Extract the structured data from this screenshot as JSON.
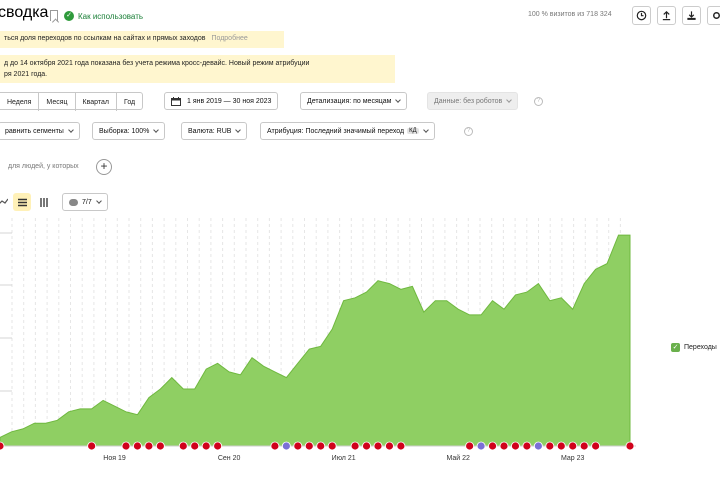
{
  "header": {
    "title": "сводка",
    "how_to_use": "Как использовать",
    "visits_info": "100 % визитов из 718 324"
  },
  "toolbar_icons": [
    "clock-icon",
    "upload-icon",
    "share-download-icon",
    "settings-icon"
  ],
  "notices": {
    "note1_text": "ться доля переходов по ссылкам на сайтах и прямых заходов",
    "note1_link": "Подробнее",
    "note2_line1": "д до 14 октября 2021 года показана без учета режима кросс-девайс. Новый режим атрибуции",
    "note2_line2": "ря 2021 года."
  },
  "period": {
    "buttons": [
      "Неделя",
      "Месяц",
      "Квартал",
      "Год"
    ],
    "range": "1 янв 2019 — 30 ноя 2023",
    "detail": "Детализация: по месяцам",
    "data_filter": "Данные: без роботов"
  },
  "filters": {
    "compare": "равнить сегменты",
    "sample": "Выборка: 100%",
    "currency": "Валюта: RUB",
    "attribution": "Атрибуция: Последний значимый переход",
    "attribution_badge": "КД"
  },
  "segment": {
    "people_text": "для людей, у которых"
  },
  "view": {
    "series_count": "7/7"
  },
  "legend": {
    "label": "Переходы"
  },
  "colors": {
    "area": "#8fcf63",
    "area_line": "#6fb83f",
    "marker_red": "#d0021b",
    "marker_purple": "#7b6fd6"
  },
  "chart_data": {
    "type": "area",
    "series": [
      {
        "name": "Переходы",
        "values": [
          3,
          5,
          6,
          8,
          8,
          9,
          12,
          13,
          13,
          16,
          14,
          12,
          11,
          17,
          20,
          24,
          20,
          20,
          27,
          29,
          26,
          25,
          31,
          28,
          26,
          24,
          29,
          34,
          35,
          41,
          51,
          52,
          54,
          58,
          57,
          55,
          56,
          47,
          51,
          51,
          48,
          46,
          46,
          51,
          48,
          53,
          54,
          57,
          51,
          52,
          48,
          57,
          62,
          64,
          74,
          74
        ]
      }
    ],
    "x_tick_labels": [
      "Ноя 19",
      "Сен 20",
      "Июл 21",
      "Май 22",
      "Мар 23"
    ],
    "x_tick_index": [
      10,
      20,
      30,
      40,
      50
    ],
    "y_max": 80,
    "grid": "vertical dashed",
    "legend_position": "right",
    "event_markers": [
      {
        "index": 0,
        "kind": "red"
      },
      {
        "index": 8,
        "kind": "red"
      },
      {
        "index": 11,
        "kind": "red"
      },
      {
        "index": 12,
        "kind": "red"
      },
      {
        "index": 13,
        "kind": "red"
      },
      {
        "index": 14,
        "kind": "red"
      },
      {
        "index": 16,
        "kind": "red"
      },
      {
        "index": 17,
        "kind": "red"
      },
      {
        "index": 18,
        "kind": "red"
      },
      {
        "index": 19,
        "kind": "red"
      },
      {
        "index": 24,
        "kind": "red"
      },
      {
        "index": 25,
        "kind": "purple"
      },
      {
        "index": 26,
        "kind": "red"
      },
      {
        "index": 27,
        "kind": "red"
      },
      {
        "index": 28,
        "kind": "red"
      },
      {
        "index": 29,
        "kind": "red"
      },
      {
        "index": 31,
        "kind": "red"
      },
      {
        "index": 32,
        "kind": "red"
      },
      {
        "index": 33,
        "kind": "red"
      },
      {
        "index": 34,
        "kind": "red"
      },
      {
        "index": 35,
        "kind": "red"
      },
      {
        "index": 41,
        "kind": "red"
      },
      {
        "index": 42,
        "kind": "purple"
      },
      {
        "index": 43,
        "kind": "red"
      },
      {
        "index": 44,
        "kind": "red"
      },
      {
        "index": 45,
        "kind": "red"
      },
      {
        "index": 46,
        "kind": "red"
      },
      {
        "index": 47,
        "kind": "purple"
      },
      {
        "index": 48,
        "kind": "red"
      },
      {
        "index": 49,
        "kind": "red"
      },
      {
        "index": 50,
        "kind": "red"
      },
      {
        "index": 51,
        "kind": "red"
      },
      {
        "index": 52,
        "kind": "red"
      },
      {
        "index": 55,
        "kind": "red"
      }
    ]
  }
}
